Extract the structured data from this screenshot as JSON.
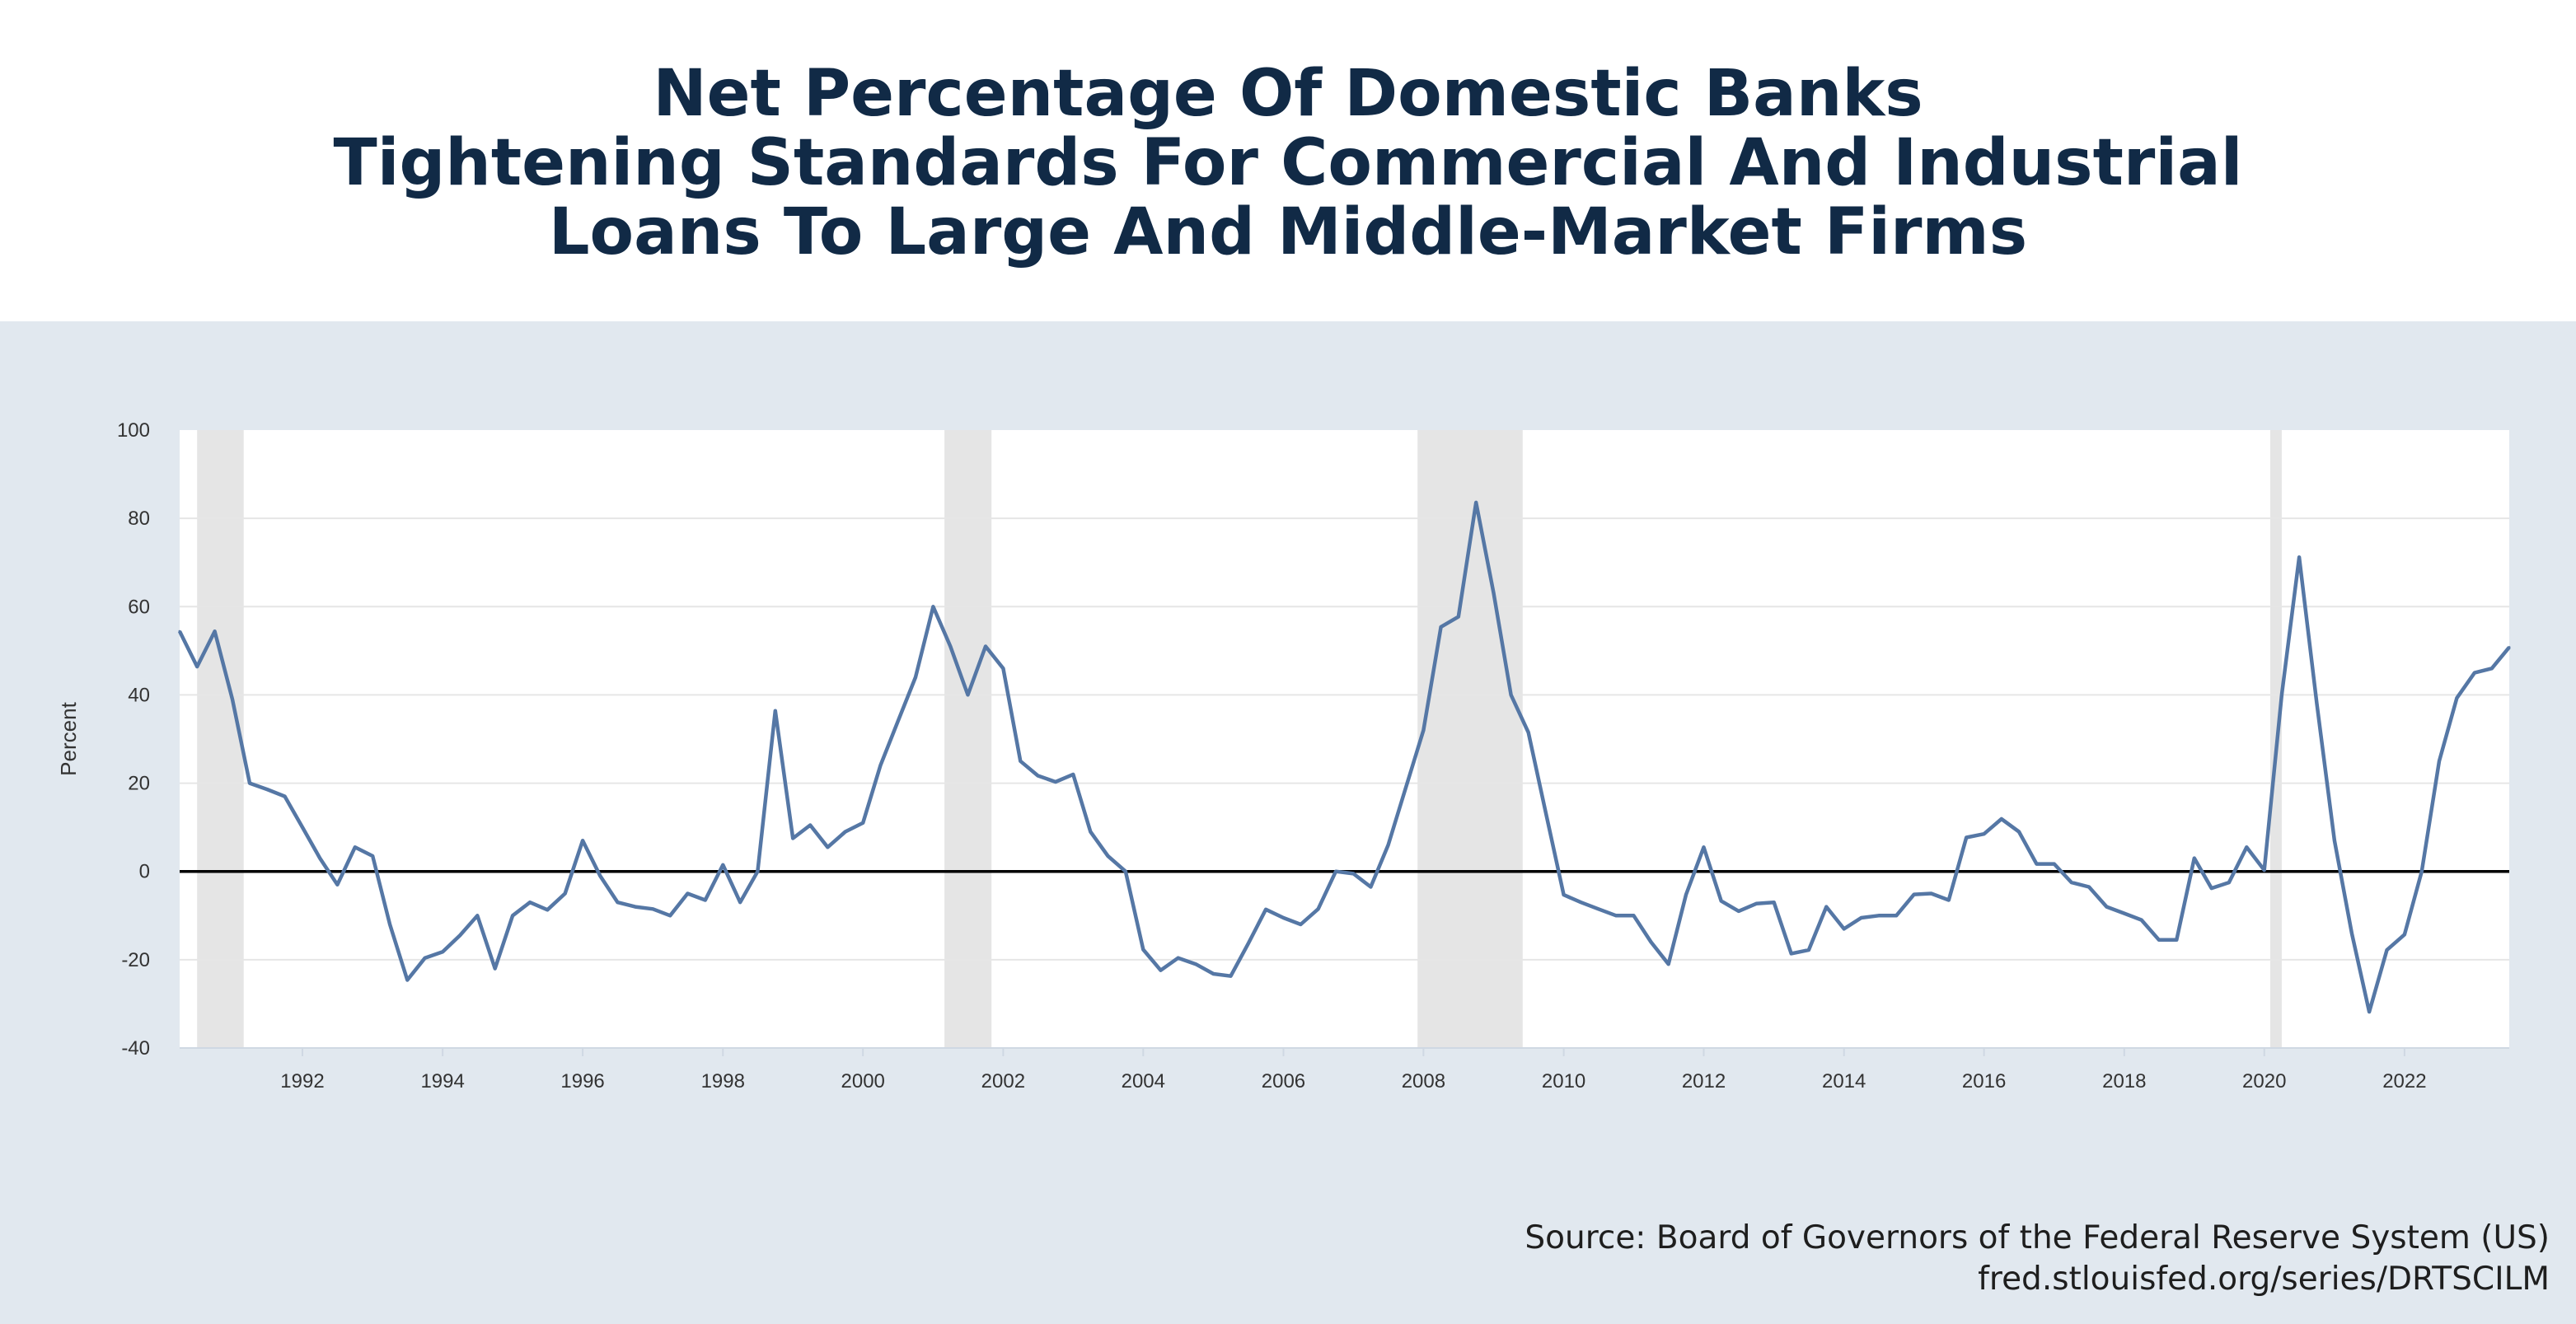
{
  "title_lines": [
    "Net Percentage Of Domestic Banks",
    "Tightening Standards For Commercial And Industrial",
    "Loans To Large And Middle-Market Firms"
  ],
  "source": {
    "line1": "Source: Board of Governors of the Federal Reserve System (US)",
    "line2": "fred.stlouisfed.org/series/DRTSCILM"
  },
  "colors": {
    "title": "#112a46",
    "panel_background": "#e1e8ef",
    "plot_background": "#ffffff",
    "series_line": "#5577a5",
    "recession_shading": "#e5e5e5",
    "zero_line": "#000000",
    "grid": "#e6e6e6"
  },
  "chart_data": {
    "type": "line",
    "title": "",
    "xlabel": "",
    "ylabel": "Percent",
    "xlim": [
      "1990-04-01",
      "2023-07-01"
    ],
    "ylim": [
      -40,
      100
    ],
    "y_ticks": [
      100,
      80,
      60,
      40,
      20,
      0,
      -20,
      -40
    ],
    "x_ticks": [
      "1992",
      "1994",
      "1996",
      "1998",
      "2000",
      "2002",
      "2004",
      "2006",
      "2008",
      "2010",
      "2012",
      "2014",
      "2016",
      "2018",
      "2020",
      "2022"
    ],
    "grid": "horizontal",
    "reference_line_y": 0,
    "recessions": [
      {
        "start": "1990-07-01",
        "end": "1991-03-01"
      },
      {
        "start": "2001-03-01",
        "end": "2001-11-01"
      },
      {
        "start": "2007-12-01",
        "end": "2009-06-01"
      },
      {
        "start": "2020-02-01",
        "end": "2020-04-01"
      }
    ],
    "series": [
      {
        "x": [
          "1990-04-01",
          "1990-07-01",
          "1990-10-01",
          "1991-01-01",
          "1991-04-01",
          "1991-07-01",
          "1991-10-01",
          "1992-01-01",
          "1992-04-01",
          "1992-07-01",
          "1992-10-01",
          "1993-01-01",
          "1993-04-01",
          "1993-07-01",
          "1993-10-01",
          "1994-01-01",
          "1994-04-01",
          "1994-07-01",
          "1994-10-01",
          "1995-01-01",
          "1995-04-01",
          "1995-07-01",
          "1995-10-01",
          "1996-01-01",
          "1996-04-01",
          "1996-07-01",
          "1996-10-01",
          "1997-01-01",
          "1997-04-01",
          "1997-07-01",
          "1997-10-01",
          "1998-01-01",
          "1998-04-01",
          "1998-07-01",
          "1998-10-01",
          "1999-01-01",
          "1999-04-01",
          "1999-07-01",
          "1999-10-01",
          "2000-01-01",
          "2000-04-01",
          "2000-07-01",
          "2000-10-01",
          "2001-01-01",
          "2001-04-01",
          "2001-07-01",
          "2001-10-01",
          "2002-01-01",
          "2002-04-01",
          "2002-07-01",
          "2002-10-01",
          "2003-01-01",
          "2003-04-01",
          "2003-07-01",
          "2003-10-01",
          "2004-01-01",
          "2004-04-01",
          "2004-07-01",
          "2004-10-01",
          "2005-01-01",
          "2005-04-01",
          "2005-07-01",
          "2005-10-01",
          "2006-01-01",
          "2006-04-01",
          "2006-07-01",
          "2006-10-01",
          "2007-01-01",
          "2007-04-01",
          "2007-07-01",
          "2007-10-01",
          "2008-01-01",
          "2008-04-01",
          "2008-07-01",
          "2008-10-01",
          "2009-01-01",
          "2009-04-01",
          "2009-07-01",
          "2009-10-01",
          "2010-01-01",
          "2010-04-01",
          "2010-07-01",
          "2010-10-01",
          "2011-01-01",
          "2011-04-01",
          "2011-07-01",
          "2011-10-01",
          "2012-01-01",
          "2012-04-01",
          "2012-07-01",
          "2012-10-01",
          "2013-01-01",
          "2013-04-01",
          "2013-07-01",
          "2013-10-01",
          "2014-01-01",
          "2014-04-01",
          "2014-07-01",
          "2014-10-01",
          "2015-01-01",
          "2015-04-01",
          "2015-07-01",
          "2015-10-01",
          "2016-01-01",
          "2016-04-01",
          "2016-07-01",
          "2016-10-01",
          "2017-01-01",
          "2017-04-01",
          "2017-07-01",
          "2017-10-01",
          "2018-01-01",
          "2018-04-01",
          "2018-07-01",
          "2018-10-01",
          "2019-01-01",
          "2019-04-01",
          "2019-07-01",
          "2019-10-01",
          "2020-01-01",
          "2020-04-01",
          "2020-07-01",
          "2020-10-01",
          "2021-01-01",
          "2021-04-01",
          "2021-07-01",
          "2021-10-01",
          "2022-01-01",
          "2022-04-01",
          "2022-07-01",
          "2022-10-01",
          "2023-01-01",
          "2023-04-01",
          "2023-07-01"
        ],
        "y": [
          54.4,
          46.4,
          54.4,
          39.0,
          20.0,
          18.6,
          17.0,
          10.0,
          3.0,
          -3.0,
          5.5,
          3.5,
          -12.0,
          -24.6,
          -19.6,
          -18.2,
          -14.5,
          -10.0,
          -22.0,
          -10.0,
          -7.0,
          -8.7,
          -5.0,
          7.0,
          -1.0,
          -7.0,
          -8.0,
          -8.5,
          -10.0,
          -5.0,
          -6.5,
          1.5,
          -7.0,
          0.0,
          36.4,
          7.5,
          10.5,
          5.5,
          9.0,
          11.0,
          24.0,
          34.0,
          44.0,
          60.0,
          51.0,
          40.0,
          51.0,
          46.0,
          25.0,
          21.7,
          20.3,
          22.0,
          9.0,
          3.5,
          0.0,
          -17.7,
          -22.4,
          -19.6,
          -21.0,
          -23.2,
          -23.7,
          -16.4,
          -8.6,
          -10.5,
          -12.0,
          -8.5,
          0.0,
          -0.5,
          -3.5,
          6.0,
          19.0,
          32.0,
          55.4,
          57.7,
          83.6,
          63.0,
          40.0,
          31.5,
          13.0,
          -5.3,
          -7.0,
          -8.5,
          -10.0,
          -10.0,
          -16.0,
          -21.0,
          -5.2,
          5.5,
          -6.7,
          -9.0,
          -7.3,
          -7.0,
          -18.6,
          -17.8,
          -8.0,
          -13.0,
          -10.5,
          -10.0,
          -10.0,
          -5.2,
          -5.0,
          -6.5,
          7.7,
          8.5,
          11.9,
          9.0,
          1.7,
          1.7,
          -2.5,
          -3.5,
          -8.0,
          -9.5,
          -11.0,
          -15.5,
          -15.5,
          3.0,
          -3.8,
          -2.5,
          5.5,
          0.3,
          40.0,
          71.2,
          38.0,
          7.0,
          -14.0,
          -31.8,
          -17.8,
          -14.3,
          0.0,
          25.0,
          39.3,
          45.0,
          46.0,
          50.8
        ]
      }
    ]
  }
}
